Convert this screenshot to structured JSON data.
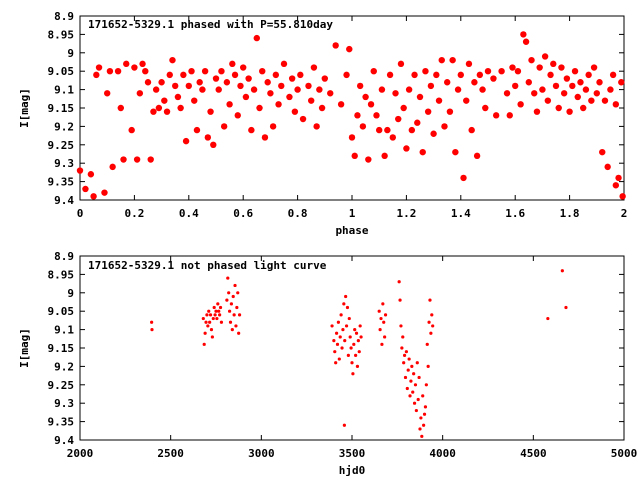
{
  "chart_data": [
    {
      "type": "scatter",
      "title": "171652-5329.1 phased with P=55.810day",
      "xlabel": "phase",
      "ylabel": "I[mag]",
      "xlim": [
        0,
        2
      ],
      "ylim": [
        8.9,
        9.4
      ],
      "y_inverted": true,
      "grid": false,
      "marker_color": "#ff0000",
      "marker": "large-dot",
      "x_ticks": [
        "0",
        "0.2",
        "0.4",
        "0.6",
        "0.8",
        "1",
        "1.2",
        "1.4",
        "1.6",
        "1.8",
        "2"
      ],
      "y_ticks": [
        "8.9",
        "8.95",
        "9",
        "9.05",
        "9.1",
        "9.15",
        "9.2",
        "9.25",
        "9.3",
        "9.35",
        "9.4"
      ],
      "points": [
        [
          0.0,
          9.32
        ],
        [
          0.02,
          9.37
        ],
        [
          0.04,
          9.33
        ],
        [
          0.05,
          9.39
        ],
        [
          0.06,
          9.06
        ],
        [
          0.07,
          9.04
        ],
        [
          0.09,
          9.38
        ],
        [
          0.1,
          9.11
        ],
        [
          0.11,
          9.05
        ],
        [
          0.12,
          9.31
        ],
        [
          0.14,
          9.05
        ],
        [
          0.15,
          9.15
        ],
        [
          0.16,
          9.29
        ],
        [
          0.17,
          9.03
        ],
        [
          0.19,
          9.21
        ],
        [
          0.2,
          9.04
        ],
        [
          0.21,
          9.29
        ],
        [
          0.22,
          9.11
        ],
        [
          0.23,
          9.03
        ],
        [
          0.24,
          9.05
        ],
        [
          0.25,
          9.08
        ],
        [
          0.26,
          9.29
        ],
        [
          0.27,
          9.16
        ],
        [
          0.28,
          9.1
        ],
        [
          0.29,
          9.15
        ],
        [
          0.3,
          9.08
        ],
        [
          0.31,
          9.13
        ],
        [
          0.32,
          9.16
        ],
        [
          0.33,
          9.06
        ],
        [
          0.34,
          9.02
        ],
        [
          0.35,
          9.09
        ],
        [
          0.36,
          9.12
        ],
        [
          0.37,
          9.15
        ],
        [
          0.38,
          9.06
        ],
        [
          0.39,
          9.24
        ],
        [
          0.4,
          9.09
        ],
        [
          0.41,
          9.05
        ],
        [
          0.42,
          9.13
        ],
        [
          0.43,
          9.21
        ],
        [
          0.44,
          9.08
        ],
        [
          0.45,
          9.1
        ],
        [
          0.46,
          9.05
        ],
        [
          0.47,
          9.23
        ],
        [
          0.48,
          9.16
        ],
        [
          0.49,
          9.25
        ],
        [
          0.5,
          9.07
        ],
        [
          0.51,
          9.1
        ],
        [
          0.52,
          9.05
        ],
        [
          0.53,
          9.2
        ],
        [
          0.54,
          9.08
        ],
        [
          0.55,
          9.14
        ],
        [
          0.56,
          9.03
        ],
        [
          0.57,
          9.06
        ],
        [
          0.58,
          9.17
        ],
        [
          0.59,
          9.09
        ],
        [
          0.6,
          9.04
        ],
        [
          0.61,
          9.12
        ],
        [
          0.62,
          9.07
        ],
        [
          0.63,
          9.21
        ],
        [
          0.64,
          9.1
        ],
        [
          0.65,
          8.96
        ],
        [
          0.66,
          9.15
        ],
        [
          0.67,
          9.05
        ],
        [
          0.68,
          9.23
        ],
        [
          0.69,
          9.08
        ],
        [
          0.7,
          9.11
        ],
        [
          0.71,
          9.2
        ],
        [
          0.72,
          9.06
        ],
        [
          0.73,
          9.14
        ],
        [
          0.74,
          9.09
        ],
        [
          0.75,
          9.03
        ],
        [
          0.77,
          9.12
        ],
        [
          0.78,
          9.07
        ],
        [
          0.79,
          9.16
        ],
        [
          0.8,
          9.1
        ],
        [
          0.81,
          9.06
        ],
        [
          0.82,
          9.18
        ],
        [
          0.84,
          9.09
        ],
        [
          0.85,
          9.13
        ],
        [
          0.86,
          9.04
        ],
        [
          0.87,
          9.2
        ],
        [
          0.88,
          9.1
        ],
        [
          0.89,
          9.15
        ],
        [
          0.9,
          9.07
        ],
        [
          0.92,
          9.11
        ],
        [
          0.94,
          8.98
        ],
        [
          0.96,
          9.14
        ],
        [
          0.98,
          9.06
        ],
        [
          0.99,
          8.99
        ],
        [
          1.0,
          9.23
        ],
        [
          1.01,
          9.28
        ],
        [
          1.02,
          9.17
        ],
        [
          1.03,
          9.09
        ],
        [
          1.04,
          9.2
        ],
        [
          1.05,
          9.12
        ],
        [
          1.06,
          9.29
        ],
        [
          1.07,
          9.14
        ],
        [
          1.08,
          9.05
        ],
        [
          1.09,
          9.17
        ],
        [
          1.1,
          9.21
        ],
        [
          1.11,
          9.1
        ],
        [
          1.12,
          9.28
        ],
        [
          1.13,
          9.21
        ],
        [
          1.14,
          9.06
        ],
        [
          1.15,
          9.23
        ],
        [
          1.16,
          9.11
        ],
        [
          1.17,
          9.18
        ],
        [
          1.18,
          9.03
        ],
        [
          1.19,
          9.15
        ],
        [
          1.2,
          9.26
        ],
        [
          1.21,
          9.1
        ],
        [
          1.22,
          9.21
        ],
        [
          1.23,
          9.06
        ],
        [
          1.24,
          9.19
        ],
        [
          1.25,
          9.12
        ],
        [
          1.26,
          9.27
        ],
        [
          1.27,
          9.05
        ],
        [
          1.28,
          9.16
        ],
        [
          1.29,
          9.09
        ],
        [
          1.3,
          9.22
        ],
        [
          1.31,
          9.06
        ],
        [
          1.32,
          9.13
        ],
        [
          1.33,
          9.02
        ],
        [
          1.34,
          9.2
        ],
        [
          1.35,
          9.08
        ],
        [
          1.36,
          9.16
        ],
        [
          1.37,
          9.02
        ],
        [
          1.38,
          9.27
        ],
        [
          1.39,
          9.1
        ],
        [
          1.4,
          9.06
        ],
        [
          1.41,
          9.34
        ],
        [
          1.42,
          9.13
        ],
        [
          1.43,
          9.03
        ],
        [
          1.44,
          9.21
        ],
        [
          1.45,
          9.08
        ],
        [
          1.46,
          9.28
        ],
        [
          1.47,
          9.06
        ],
        [
          1.48,
          9.1
        ],
        [
          1.49,
          9.15
        ],
        [
          1.5,
          9.05
        ],
        [
          1.52,
          9.07
        ],
        [
          1.53,
          9.17
        ],
        [
          1.55,
          9.05
        ],
        [
          1.57,
          9.11
        ],
        [
          1.58,
          9.17
        ],
        [
          1.59,
          9.04
        ],
        [
          1.6,
          9.09
        ],
        [
          1.61,
          9.05
        ],
        [
          1.62,
          9.14
        ],
        [
          1.63,
          8.95
        ],
        [
          1.64,
          8.97
        ],
        [
          1.65,
          9.08
        ],
        [
          1.66,
          9.02
        ],
        [
          1.67,
          9.11
        ],
        [
          1.68,
          9.16
        ],
        [
          1.69,
          9.04
        ],
        [
          1.7,
          9.1
        ],
        [
          1.71,
          9.01
        ],
        [
          1.72,
          9.13
        ],
        [
          1.73,
          9.06
        ],
        [
          1.74,
          9.03
        ],
        [
          1.75,
          9.09
        ],
        [
          1.76,
          9.15
        ],
        [
          1.77,
          9.04
        ],
        [
          1.78,
          9.11
        ],
        [
          1.79,
          9.07
        ],
        [
          1.8,
          9.16
        ],
        [
          1.81,
          9.09
        ],
        [
          1.82,
          9.05
        ],
        [
          1.83,
          9.12
        ],
        [
          1.84,
          9.08
        ],
        [
          1.85,
          9.15
        ],
        [
          1.86,
          9.1
        ],
        [
          1.87,
          9.06
        ],
        [
          1.88,
          9.13
        ],
        [
          1.89,
          9.04
        ],
        [
          1.9,
          9.11
        ],
        [
          1.91,
          9.08
        ],
        [
          1.92,
          9.27
        ],
        [
          1.93,
          9.13
        ],
        [
          1.94,
          9.31
        ],
        [
          1.95,
          9.1
        ],
        [
          1.96,
          9.06
        ],
        [
          1.97,
          9.14
        ],
        [
          1.98,
          9.34
        ],
        [
          1.99,
          9.08
        ],
        [
          1.995,
          9.39
        ],
        [
          1.97,
          9.36
        ]
      ]
    },
    {
      "type": "scatter",
      "title": "171652-5329.1 not phased light curve",
      "xlabel": "hjd0",
      "ylabel": "I[mag]",
      "xlim": [
        2000,
        5000
      ],
      "ylim": [
        8.9,
        9.4
      ],
      "y_inverted": true,
      "grid": false,
      "marker_color": "#ff0000",
      "marker": "small-dot",
      "x_ticks": [
        "2000",
        "2500",
        "3000",
        "3500",
        "4000",
        "4500",
        "5000"
      ],
      "y_ticks": [
        "8.9",
        "8.95",
        "9",
        "9.05",
        "9.1",
        "9.15",
        "9.2",
        "9.25",
        "9.3",
        "9.35",
        "9.4"
      ],
      "points": [
        [
          2395,
          9.08
        ],
        [
          2397,
          9.1
        ],
        [
          2680,
          9.07
        ],
        [
          2685,
          9.14
        ],
        [
          2690,
          9.11
        ],
        [
          2695,
          9.08
        ],
        [
          2700,
          9.06
        ],
        [
          2705,
          9.09
        ],
        [
          2710,
          9.05
        ],
        [
          2715,
          9.08
        ],
        [
          2720,
          9.06
        ],
        [
          2725,
          9.1
        ],
        [
          2730,
          9.12
        ],
        [
          2735,
          9.07
        ],
        [
          2740,
          9.04
        ],
        [
          2745,
          9.06
        ],
        [
          2750,
          9.05
        ],
        [
          2755,
          9.07
        ],
        [
          2760,
          9.03
        ],
        [
          2765,
          9.05
        ],
        [
          2770,
          9.06
        ],
        [
          2775,
          9.04
        ],
        [
          2780,
          9.08
        ],
        [
          2810,
          9.02
        ],
        [
          2815,
          8.96
        ],
        [
          2820,
          9.0
        ],
        [
          2825,
          9.05
        ],
        [
          2830,
          9.08
        ],
        [
          2835,
          9.03
        ],
        [
          2840,
          9.1
        ],
        [
          2845,
          9.01
        ],
        [
          2850,
          9.06
        ],
        [
          2855,
          8.98
        ],
        [
          2860,
          9.09
        ],
        [
          2865,
          9.04
        ],
        [
          2870,
          9.0
        ],
        [
          2875,
          9.11
        ],
        [
          2880,
          9.06
        ],
        [
          3390,
          9.09
        ],
        [
          3400,
          9.13
        ],
        [
          3405,
          9.16
        ],
        [
          3410,
          9.19
        ],
        [
          3415,
          9.11
        ],
        [
          3420,
          9.14
        ],
        [
          3425,
          9.08
        ],
        [
          3430,
          9.18
        ],
        [
          3435,
          9.12
        ],
        [
          3440,
          9.06
        ],
        [
          3445,
          9.15
        ],
        [
          3450,
          9.1
        ],
        [
          3455,
          9.03
        ],
        [
          3458,
          9.36
        ],
        [
          3460,
          9.13
        ],
        [
          3465,
          9.01
        ],
        [
          3470,
          9.09
        ],
        [
          3475,
          9.04
        ],
        [
          3480,
          9.17
        ],
        [
          3485,
          9.07
        ],
        [
          3490,
          9.12
        ],
        [
          3495,
          9.15
        ],
        [
          3500,
          9.19
        ],
        [
          3505,
          9.22
        ],
        [
          3510,
          9.14
        ],
        [
          3515,
          9.1
        ],
        [
          3520,
          9.17
        ],
        [
          3525,
          9.11
        ],
        [
          3530,
          9.2
        ],
        [
          3535,
          9.13
        ],
        [
          3540,
          9.16
        ],
        [
          3545,
          9.09
        ],
        [
          3550,
          9.12
        ],
        [
          3650,
          9.05
        ],
        [
          3655,
          9.1
        ],
        [
          3660,
          9.07
        ],
        [
          3665,
          9.14
        ],
        [
          3670,
          9.03
        ],
        [
          3675,
          9.08
        ],
        [
          3680,
          9.12
        ],
        [
          3685,
          9.06
        ],
        [
          3760,
          8.97
        ],
        [
          3765,
          9.02
        ],
        [
          3770,
          9.09
        ],
        [
          3775,
          9.15
        ],
        [
          3780,
          9.12
        ],
        [
          3785,
          9.19
        ],
        [
          3790,
          9.17
        ],
        [
          3795,
          9.23
        ],
        [
          3800,
          9.16
        ],
        [
          3805,
          9.26
        ],
        [
          3810,
          9.21
        ],
        [
          3815,
          9.18
        ],
        [
          3820,
          9.28
        ],
        [
          3825,
          9.24
        ],
        [
          3830,
          9.2
        ],
        [
          3835,
          9.27
        ],
        [
          3840,
          9.22
        ],
        [
          3845,
          9.3
        ],
        [
          3850,
          9.25
        ],
        [
          3855,
          9.32
        ],
        [
          3860,
          9.19
        ],
        [
          3865,
          9.29
        ],
        [
          3870,
          9.23
        ],
        [
          3875,
          9.37
        ],
        [
          3880,
          9.34
        ],
        [
          3885,
          9.39
        ],
        [
          3890,
          9.28
        ],
        [
          3895,
          9.36
        ],
        [
          3900,
          9.33
        ],
        [
          3905,
          9.31
        ],
        [
          3910,
          9.25
        ],
        [
          3915,
          9.14
        ],
        [
          3920,
          9.2
        ],
        [
          3925,
          9.08
        ],
        [
          3930,
          9.02
        ],
        [
          3935,
          9.11
        ],
        [
          3940,
          9.06
        ],
        [
          3945,
          9.09
        ],
        [
          4580,
          9.07
        ],
        [
          4660,
          8.94
        ],
        [
          4680,
          9.04
        ]
      ]
    }
  ]
}
